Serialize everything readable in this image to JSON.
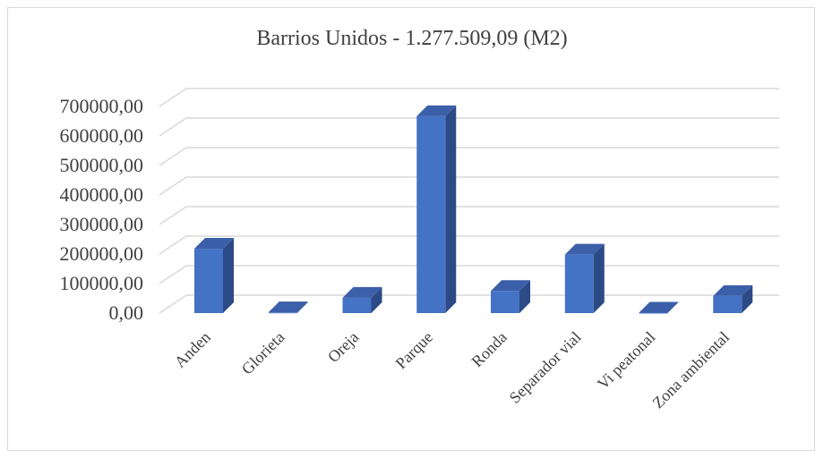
{
  "chart_data": {
    "type": "bar",
    "title": "Barrios Unidos - 1.277.509,09 (M2)",
    "xlabel": "",
    "ylabel": "",
    "categories": [
      "Anden",
      "Glorieta",
      "Oreja",
      "Parque",
      "Ronda",
      "Separador vial",
      "Vi peatonal",
      "Zona ambiental"
    ],
    "values": [
      218000,
      2500,
      52000,
      667000,
      75000,
      198000,
      1500,
      58000
    ],
    "y_ticks": [
      "0,00",
      "100000,00",
      "200000,00",
      "300000,00",
      "400000,00",
      "500000,00",
      "600000,00",
      "700000,00"
    ],
    "ylim": [
      0,
      700000
    ],
    "grid": true,
    "legend": "none",
    "style": "3d-column",
    "colors": {
      "front": "#4472c4",
      "top": "#3b5fa8",
      "side": "#2c4a86",
      "grid": "#d9d9d9",
      "text": "#404040"
    }
  }
}
